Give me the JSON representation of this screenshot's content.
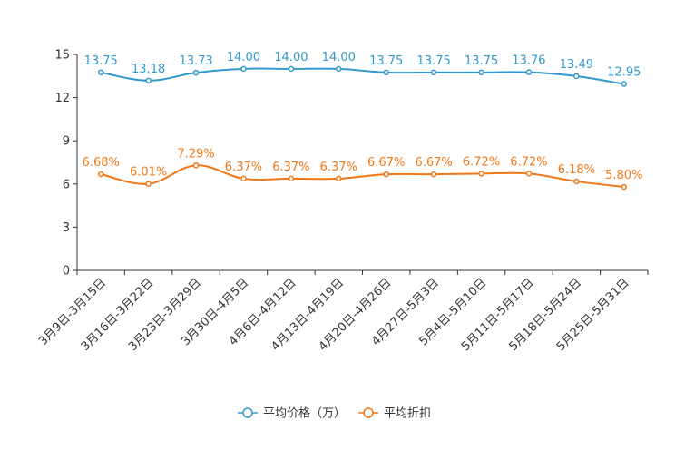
{
  "chart_data": {
    "type": "line",
    "categories": [
      "3月9日-3月15日",
      "3月16日-3月22日",
      "3月23日-3月29日",
      "3月30日-4月5日",
      "4月6日-4月12日",
      "4月13日-4月19日",
      "4月20日-4月26日",
      "4月27日-5月3日",
      "5月4日-5月10日",
      "5月11日-5月17日",
      "5月18日-5月24日",
      "5月25日-5月31日"
    ],
    "ylim": [
      0,
      15
    ],
    "yticks": [
      0,
      3,
      6,
      9,
      12,
      15
    ],
    "legend_position": "bottom-center",
    "series": [
      {
        "name": "平均价格（万）",
        "color": "#3399cc",
        "values": [
          13.75,
          13.18,
          13.73,
          14.0,
          14.0,
          14.0,
          13.75,
          13.75,
          13.75,
          13.76,
          13.49,
          12.95
        ],
        "labels": [
          "13.75",
          "13.18",
          "13.73",
          "14.00",
          "14.00",
          "14.00",
          "13.75",
          "13.75",
          "13.75",
          "13.76",
          "13.49",
          "12.95"
        ]
      },
      {
        "name": "平均折扣",
        "color": "#f07818",
        "values": [
          6.68,
          6.01,
          7.29,
          6.37,
          6.37,
          6.37,
          6.67,
          6.67,
          6.72,
          6.72,
          6.18,
          5.8
        ],
        "labels": [
          "6.68%",
          "6.01%",
          "7.29%",
          "6.37%",
          "6.37%",
          "6.37%",
          "6.67%",
          "6.67%",
          "6.72%",
          "6.72%",
          "6.18%",
          "5.80%"
        ]
      }
    ]
  }
}
